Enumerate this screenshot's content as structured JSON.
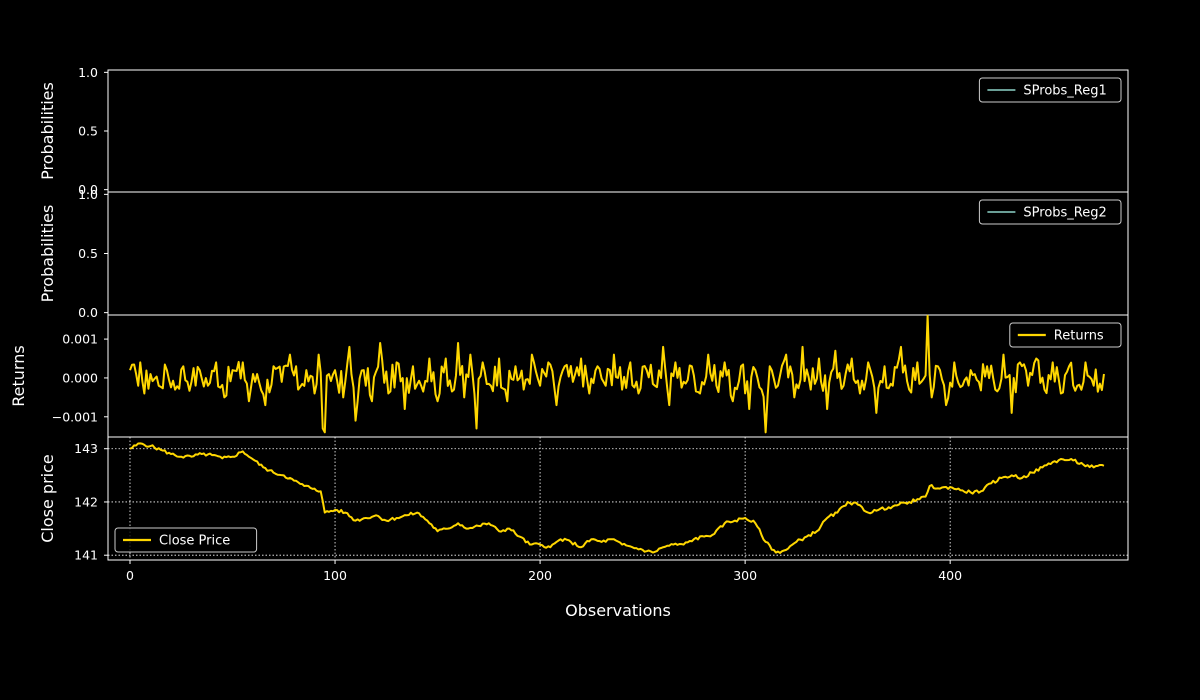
{
  "chart_data": {
    "type": "line",
    "xlabel": "Observations",
    "x_range": [
      0,
      476
    ],
    "x_ticks": [
      0,
      100,
      200,
      300,
      400
    ],
    "colors": {
      "background": "#000000",
      "frame": "#ffffff",
      "regime_line": "#8dd3c7",
      "price_line": "#ffd700",
      "grid": "#ffffff"
    },
    "panels": [
      {
        "id": "sprobs-reg1",
        "ylabel": "Probabilities",
        "ylim": [
          -0.02,
          1.02
        ],
        "y_ticks": [
          "0.0",
          "0.5",
          "1.0"
        ],
        "y_tick_values": [
          0,
          0.5,
          1
        ],
        "grid": false,
        "legend_position": "upper-right",
        "series": [
          {
            "name": "SProbs_Reg1",
            "color": "#8dd3c7",
            "values": []
          }
        ]
      },
      {
        "id": "sprobs-reg2",
        "ylabel": "Probabilities",
        "ylim": [
          -0.02,
          1.02
        ],
        "y_ticks": [
          "0.0",
          "0.5",
          "1.0"
        ],
        "y_tick_values": [
          0,
          0.5,
          1
        ],
        "grid": false,
        "legend_position": "upper-right",
        "series": [
          {
            "name": "SProbs_Reg2",
            "color": "#8dd3c7",
            "values": []
          }
        ]
      },
      {
        "id": "returns",
        "ylabel": "Returns",
        "ylim": [
          -0.00152,
          0.00162
        ],
        "y_ticks": [
          "0.001",
          "0.000",
          "−0.001"
        ],
        "y_tick_values": [
          0.001,
          0,
          -0.001
        ],
        "grid": false,
        "legend_position": "upper-right",
        "series": [
          {
            "name": "Returns",
            "color": "#ffd700",
            "keypoints": [
              [
                0,
                0.0002
              ],
              [
                3,
                0.0001
              ],
              [
                5,
                0.0004
              ],
              [
                7,
                -0.0004
              ],
              [
                10,
                0.0001
              ],
              [
                14,
                -0.0002
              ],
              [
                18,
                0.0002
              ],
              [
                22,
                -0.0003
              ],
              [
                26,
                0.0003
              ],
              [
                30,
                -0.0001
              ],
              [
                34,
                0.0002
              ],
              [
                38,
                -0.0002
              ],
              [
                42,
                0.0004
              ],
              [
                46,
                -0.0005
              ],
              [
                50,
                0.0002
              ],
              [
                55,
                0.0004
              ],
              [
                58,
                -0.0006
              ],
              [
                62,
                0.0001
              ],
              [
                66,
                -0.0007
              ],
              [
                70,
                0.0003
              ],
              [
                74,
                -0.0001
              ],
              [
                78,
                0.0006
              ],
              [
                82,
                -0.0003
              ],
              [
                86,
                0.0002
              ],
              [
                90,
                -0.0004
              ],
              [
                92,
                0.0006
              ],
              [
                94,
                -0.0013
              ],
              [
                95,
                -0.0014
              ],
              [
                97,
                0.0001
              ],
              [
                100,
                0.0002
              ],
              [
                104,
                -0.0005
              ],
              [
                107,
                0.0008
              ],
              [
                110,
                -0.0011
              ],
              [
                114,
                0.0002
              ],
              [
                118,
                -0.0006
              ],
              [
                122,
                0.0009
              ],
              [
                126,
                -0.0004
              ],
              [
                130,
                0.0004
              ],
              [
                134,
                -0.0008
              ],
              [
                138,
                0.0003
              ],
              [
                142,
                -0.0002
              ],
              [
                146,
                0.0005
              ],
              [
                150,
                -0.0006
              ],
              [
                154,
                0.0005
              ],
              [
                158,
                -0.0003
              ],
              [
                160,
                0.0009
              ],
              [
                163,
                -0.0005
              ],
              [
                166,
                0.0006
              ],
              [
                169,
                -0.0013
              ],
              [
                172,
                0.0004
              ],
              [
                176,
                -0.0002
              ],
              [
                180,
                0.0005
              ],
              [
                184,
                -0.0006
              ],
              [
                188,
                0.0003
              ],
              [
                192,
                -0.0003
              ],
              [
                196,
                0.0006
              ],
              [
                200,
                -0.0002
              ],
              [
                204,
                0.0004
              ],
              [
                208,
                -0.0007
              ],
              [
                212,
                0.0003
              ],
              [
                216,
                -0.0001
              ],
              [
                220,
                0.0005
              ],
              [
                224,
                -0.0004
              ],
              [
                228,
                0.0003
              ],
              [
                232,
                -0.0002
              ],
              [
                236,
                0.0006
              ],
              [
                240,
                -0.0003
              ],
              [
                244,
                0.0004
              ],
              [
                248,
                -0.0004
              ],
              [
                252,
                0.0002
              ],
              [
                256,
                -0.0002
              ],
              [
                260,
                0.0008
              ],
              [
                263,
                -0.0007
              ],
              [
                266,
                0.0004
              ],
              [
                270,
                -0.0001
              ],
              [
                274,
                0.0003
              ],
              [
                278,
                -0.0004
              ],
              [
                282,
                0.0006
              ],
              [
                286,
                -0.0002
              ],
              [
                290,
                0.0004
              ],
              [
                294,
                -0.0006
              ],
              [
                298,
                0.0003
              ],
              [
                302,
                -0.0008
              ],
              [
                305,
                0.0002
              ],
              [
                308,
                -0.0003
              ],
              [
                310,
                -0.0014
              ],
              [
                312,
                0.0003
              ],
              [
                316,
                -0.0002
              ],
              [
                320,
                0.0006
              ],
              [
                324,
                -0.0005
              ],
              [
                328,
                0.0008
              ],
              [
                332,
                -0.0003
              ],
              [
                336,
                0.0005
              ],
              [
                340,
                -0.0008
              ],
              [
                344,
                0.0007
              ],
              [
                348,
                -0.0002
              ],
              [
                352,
                0.0005
              ],
              [
                356,
                -0.0004
              ],
              [
                360,
                0.0004
              ],
              [
                364,
                -0.0009
              ],
              [
                368,
                0.0003
              ],
              [
                372,
                -0.0002
              ],
              [
                376,
                0.0008
              ],
              [
                380,
                -0.0003
              ],
              [
                384,
                0.0004
              ],
              [
                386,
                -0.0001
              ],
              [
                389,
                0.0016
              ],
              [
                391,
                -0.0005
              ],
              [
                394,
                0.0003
              ],
              [
                398,
                -0.0007
              ],
              [
                402,
                0.0004
              ],
              [
                406,
                -0.0002
              ],
              [
                410,
                0.0002
              ],
              [
                414,
                -0.0001
              ],
              [
                418,
                0.0003
              ],
              [
                422,
                -0.0003
              ],
              [
                426,
                0.0006
              ],
              [
                430,
                -0.0009
              ],
              [
                434,
                0.0004
              ],
              [
                438,
                -0.0002
              ],
              [
                442,
                0.0005
              ],
              [
                446,
                -0.0003
              ],
              [
                450,
                0.0004
              ],
              [
                454,
                -0.0004
              ],
              [
                458,
                0.0003
              ],
              [
                462,
                -0.0002
              ],
              [
                466,
                0.0004
              ],
              [
                470,
                -0.0002
              ],
              [
                475,
                0.0001
              ]
            ]
          }
        ]
      },
      {
        "id": "close-price",
        "ylabel": "Close price",
        "ylim": [
          140.91,
          143.22
        ],
        "y_ticks": [
          "143",
          "142",
          "141"
        ],
        "y_tick_values": [
          143,
          142,
          141
        ],
        "grid": true,
        "legend_position": "lower-left",
        "series": [
          {
            "name": "Close Price",
            "color": "#ffd700",
            "keypoints": [
              [
                0,
                143.0
              ],
              [
                5,
                143.1
              ],
              [
                10,
                143.05
              ],
              [
                15,
                142.98
              ],
              [
                20,
                142.9
              ],
              [
                25,
                142.85
              ],
              [
                30,
                142.85
              ],
              [
                35,
                142.9
              ],
              [
                40,
                142.88
              ],
              [
                45,
                142.82
              ],
              [
                50,
                142.85
              ],
              [
                55,
                142.95
              ],
              [
                60,
                142.8
              ],
              [
                65,
                142.65
              ],
              [
                70,
                142.55
              ],
              [
                75,
                142.5
              ],
              [
                80,
                142.4
              ],
              [
                85,
                142.3
              ],
              [
                90,
                142.25
              ],
              [
                93,
                142.2
              ],
              [
                95,
                141.8
              ],
              [
                100,
                141.85
              ],
              [
                105,
                141.8
              ],
              [
                110,
                141.65
              ],
              [
                115,
                141.7
              ],
              [
                120,
                141.75
              ],
              [
                125,
                141.65
              ],
              [
                130,
                141.7
              ],
              [
                135,
                141.75
              ],
              [
                140,
                141.8
              ],
              [
                145,
                141.65
              ],
              [
                150,
                141.45
              ],
              [
                155,
                141.5
              ],
              [
                160,
                141.6
              ],
              [
                165,
                141.5
              ],
              [
                170,
                141.55
              ],
              [
                175,
                141.6
              ],
              [
                180,
                141.45
              ],
              [
                185,
                141.5
              ],
              [
                190,
                141.35
              ],
              [
                195,
                141.2
              ],
              [
                200,
                141.2
              ],
              [
                205,
                141.15
              ],
              [
                210,
                141.3
              ],
              [
                215,
                141.25
              ],
              [
                220,
                141.15
              ],
              [
                225,
                141.3
              ],
              [
                230,
                141.25
              ],
              [
                235,
                141.3
              ],
              [
                240,
                141.2
              ],
              [
                245,
                141.15
              ],
              [
                250,
                141.1
              ],
              [
                255,
                141.05
              ],
              [
                260,
                141.15
              ],
              [
                265,
                141.2
              ],
              [
                270,
                141.2
              ],
              [
                275,
                141.3
              ],
              [
                280,
                141.35
              ],
              [
                285,
                141.4
              ],
              [
                290,
                141.6
              ],
              [
                295,
                141.65
              ],
              [
                300,
                141.7
              ],
              [
                305,
                141.6
              ],
              [
                310,
                141.25
              ],
              [
                315,
                141.05
              ],
              [
                320,
                141.1
              ],
              [
                325,
                141.25
              ],
              [
                330,
                141.35
              ],
              [
                335,
                141.45
              ],
              [
                340,
                141.7
              ],
              [
                345,
                141.8
              ],
              [
                350,
                142.0
              ],
              [
                355,
                141.95
              ],
              [
                360,
                141.8
              ],
              [
                365,
                141.85
              ],
              [
                370,
                141.9
              ],
              [
                375,
                141.95
              ],
              [
                380,
                142.0
              ],
              [
                385,
                142.05
              ],
              [
                388,
                142.1
              ],
              [
                390,
                142.3
              ],
              [
                395,
                142.25
              ],
              [
                400,
                142.28
              ],
              [
                405,
                142.22
              ],
              [
                410,
                142.18
              ],
              [
                415,
                142.2
              ],
              [
                420,
                142.35
              ],
              [
                425,
                142.45
              ],
              [
                430,
                142.5
              ],
              [
                435,
                142.45
              ],
              [
                440,
                142.55
              ],
              [
                445,
                142.65
              ],
              [
                450,
                142.75
              ],
              [
                455,
                142.8
              ],
              [
                460,
                142.78
              ],
              [
                465,
                142.7
              ],
              [
                470,
                142.65
              ],
              [
                475,
                142.68
              ]
            ]
          }
        ]
      }
    ]
  }
}
